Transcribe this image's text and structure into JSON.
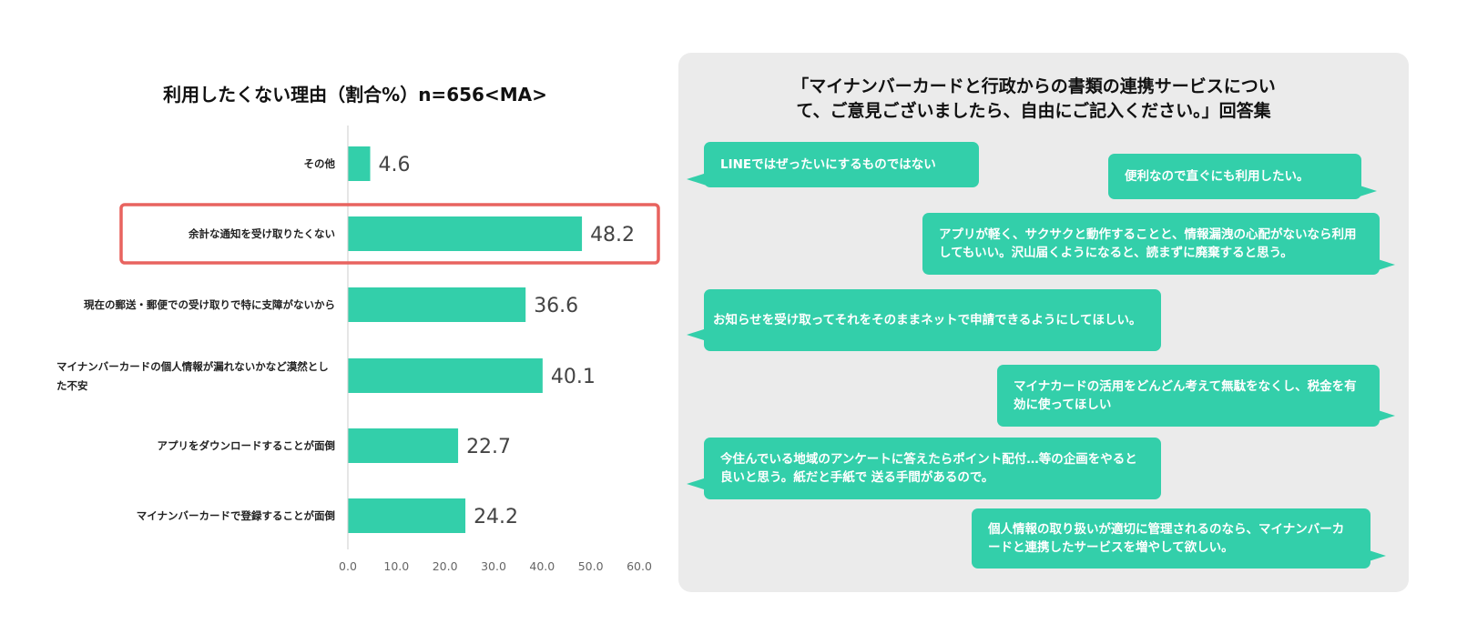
{
  "chart_data": {
    "type": "bar",
    "orientation": "horizontal",
    "title": "利用したくない理由（割合%）n=656<MA>",
    "categories": [
      "その他",
      "余計な通知を受け取りたくない",
      "現在の郵送・郵便での受け取りで特に支障がないから",
      "マイナンバーカードの個人情報が漏れないかなど漠然とした不安",
      "アプリをダウンロードすることが面倒",
      "マイナンバーカードで登録することが面倒"
    ],
    "values": [
      4.6,
      48.2,
      36.6,
      40.1,
      22.7,
      24.2
    ],
    "value_labels": [
      "4.6",
      "48.2",
      "36.6",
      "40.1",
      "22.7",
      "24.2"
    ],
    "xlim": [
      0,
      60
    ],
    "ticks": [
      "0.0",
      "10.0",
      "20.0",
      "30.0",
      "40.0",
      "50.0",
      "60.0"
    ],
    "bar_color": "#33cfaa",
    "highlight_index": 1,
    "highlight_color": "#e8635f"
  },
  "comments": {
    "title": "「マイナンバーカードと行政からの書類の連携サービスについて、ご意見ございましたら、自由にご記入ください。」回答集",
    "bubble_color": "#33cfaa",
    "items": [
      "LINEではぜったいにするものではない",
      "便利なので直ぐにも利用したい。",
      "アプリが軽く、サクサクと動作することと、情報漏洩の心配がないなら利用してもいい。沢山届くようになると、読まずに廃棄すると思う。",
      "お知らせを受け取ってそれをそのままネットで申請できるようにしてほしい。",
      "マイナカードの活用をどんどん考えて無駄をなくし、税金を有効に使ってほしい",
      "今住んでいる地域のアンケートに答えたらポイント配付…等の企画をやると良いと思う。紙だと手紙で 送る手間があるので。",
      "個人情報の取り扱いが適切に管理されるのなら、マイナンバーカードと連携したサービスを増やして欲しい。"
    ]
  }
}
